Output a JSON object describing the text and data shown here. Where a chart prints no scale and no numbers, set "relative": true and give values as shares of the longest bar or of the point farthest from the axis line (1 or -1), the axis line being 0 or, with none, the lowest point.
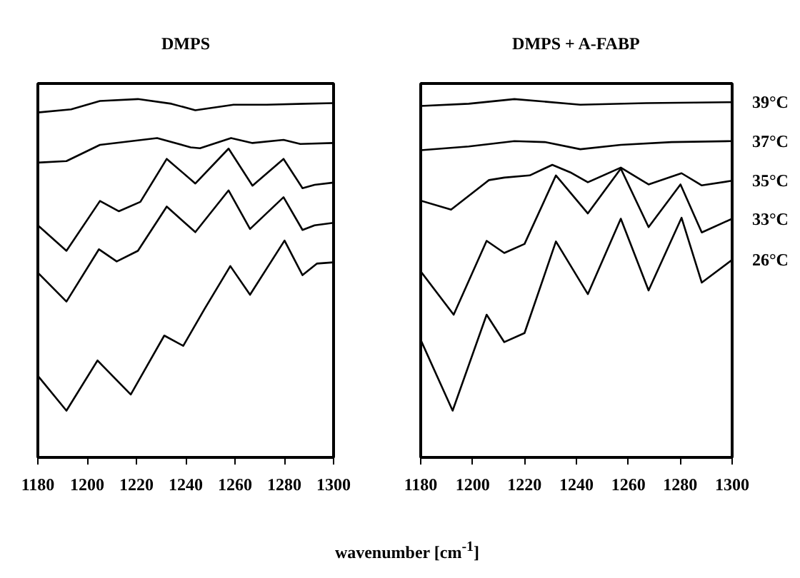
{
  "chart_data": [
    {
      "type": "line",
      "title": "DMPS",
      "xlabel": "wavenumber [cm$^{-1}$]",
      "relative": true,
      "xlim": [
        1180,
        1300
      ],
      "xticks": [
        1180,
        1200,
        1220,
        1240,
        1260,
        1280,
        1300
      ],
      "line_style": "solid",
      "series": [
        {
          "color": "#000000",
          "x": [
            1180,
            1193.5,
            1205.2,
            1220.6,
            1234.2,
            1243.9,
            1259.4,
            1272.9,
            1288.4,
            1300
          ],
          "values": [
            0.957,
            0.967,
            0.994,
            1,
            0.985,
            0.964,
            0.982,
            0.982,
            0.985,
            0.987
          ]
        },
        {
          "color": "#000000",
          "x": [
            1180,
            1191.6,
            1205.2,
            1228.4,
            1242.0,
            1245.8,
            1258.4,
            1267.1,
            1279.7,
            1286.5,
            1300
          ],
          "values": [
            0.796,
            0.801,
            0.853,
            0.875,
            0.845,
            0.842,
            0.875,
            0.859,
            0.869,
            0.856,
            0.859
          ]
        },
        {
          "color": "#000000",
          "x": [
            1180,
            1191.6,
            1205.2,
            1212.9,
            1221.6,
            1232.3,
            1243.9,
            1257.4,
            1267.1,
            1279.7,
            1287.4,
            1292.3,
            1300
          ],
          "values": [
            0.595,
            0.513,
            0.673,
            0.64,
            0.67,
            0.808,
            0.729,
            0.841,
            0.722,
            0.808,
            0.714,
            0.725,
            0.732
          ]
        },
        {
          "color": "#000000",
          "x": [
            1180,
            1191.6,
            1204.8,
            1212.0,
            1220.6,
            1232.3,
            1243.9,
            1257.4,
            1266.1,
            1279.7,
            1287.4,
            1292.3,
            1300
          ],
          "values": [
            0.443,
            0.35,
            0.518,
            0.479,
            0.513,
            0.655,
            0.573,
            0.707,
            0.583,
            0.685,
            0.58,
            0.595,
            0.603
          ]
        },
        {
          "color": "#000000",
          "x": [
            1180,
            1191.6,
            1204.2,
            1217.7,
            1231.3,
            1239.0,
            1247.7,
            1258.1,
            1266.1,
            1280.1,
            1287.4,
            1293.2,
            1300
          ],
          "values": [
            0.112,
            0,
            0.161,
            0.052,
            0.241,
            0.208,
            0.327,
            0.464,
            0.372,
            0.546,
            0.435,
            0.472,
            0.476
          ]
        }
      ]
    },
    {
      "type": "line",
      "title": "DMPS + A-FABP",
      "relative": true,
      "xlim": [
        1180,
        1300
      ],
      "xticks": [
        1180,
        1200,
        1220,
        1240,
        1260,
        1280,
        1300
      ],
      "line_style": "solid",
      "series": [
        {
          "name": "39°C",
          "color": "#000000",
          "x": [
            1180,
            1198.5,
            1216.1,
            1241.5,
            1266.8,
            1300
          ],
          "values": [
            0.978,
            0.985,
            1,
            0.982,
            0.987,
            0.99
          ]
        },
        {
          "name": "37°C",
          "color": "#000000",
          "x": [
            1180,
            1198.5,
            1216.1,
            1227.8,
            1241.5,
            1257.1,
            1276.6,
            1300
          ],
          "values": [
            0.836,
            0.848,
            0.865,
            0.862,
            0.839,
            0.853,
            0.862,
            0.865
          ]
        },
        {
          "name": "35°C",
          "color": "#000000",
          "x": [
            1180,
            1191.7,
            1206.3,
            1212.2,
            1222.0,
            1230.7,
            1237.6,
            1244.4,
            1257.1,
            1267.8,
            1280.5,
            1288.3,
            1300
          ],
          "values": [
            0.674,
            0.645,
            0.74,
            0.748,
            0.755,
            0.789,
            0.765,
            0.733,
            0.78,
            0.726,
            0.762,
            0.723,
            0.738
          ]
        },
        {
          "name": "33°C",
          "color": "#000000",
          "x": [
            1180,
            1192.7,
            1205.4,
            1212.2,
            1220.0,
            1232.1,
            1244.4,
            1257.1,
            1267.8,
            1280.1,
            1288.3,
            1300
          ],
          "values": [
            0.447,
            0.308,
            0.545,
            0.506,
            0.535,
            0.755,
            0.633,
            0.777,
            0.589,
            0.726,
            0.572,
            0.616
          ]
        },
        {
          "name": "26°C",
          "color": "#000000",
          "x": [
            1180,
            1192.3,
            1205.4,
            1212.2,
            1220.0,
            1232.1,
            1244.4,
            1257.1,
            1267.8,
            1280.5,
            1288.3,
            1300
          ],
          "values": [
            0.227,
            0,
            0.308,
            0.22,
            0.249,
            0.543,
            0.374,
            0.616,
            0.386,
            0.619,
            0.411,
            0.484
          ]
        }
      ]
    }
  ]
}
